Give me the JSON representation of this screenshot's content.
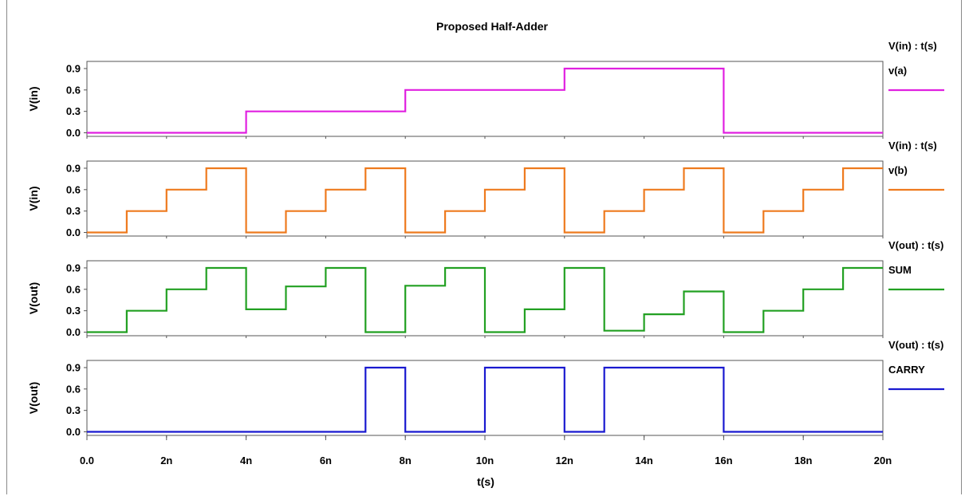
{
  "chart_data": {
    "type": "line",
    "title": "Proposed Half-Adder",
    "xlabel": "t(s)",
    "x_tick_labels": [
      "0.0",
      "2n",
      "4n",
      "6n",
      "8n",
      "10n",
      "12n",
      "14n",
      "16n",
      "18n",
      "20n"
    ],
    "xlim": [
      0,
      20
    ],
    "x_unit": "ns",
    "panels": [
      {
        "ylabel": "V(in)",
        "header": "V(in) : t(s)",
        "series_name": "v(a)",
        "color": "#e020e0",
        "ylim": [
          -0.05,
          1.0
        ],
        "y_ticks": [
          "0.0",
          "0.3",
          "0.6",
          "0.9"
        ],
        "x": [
          0,
          4,
          4,
          8,
          8,
          12,
          12,
          16,
          16,
          20
        ],
        "y": [
          0,
          0,
          0.3,
          0.3,
          0.6,
          0.6,
          0.9,
          0.9,
          0,
          0
        ]
      },
      {
        "ylabel": "V(in)",
        "header": "V(in) : t(s)",
        "series_name": "v(b)",
        "color": "#ee7a1e",
        "ylim": [
          -0.05,
          1.0
        ],
        "y_ticks": [
          "0.0",
          "0.3",
          "0.6",
          "0.9"
        ],
        "x": [
          0,
          1,
          1,
          2,
          2,
          3,
          3,
          4,
          4,
          5,
          5,
          6,
          6,
          7,
          7,
          8,
          8,
          9,
          9,
          10,
          10,
          11,
          11,
          12,
          12,
          13,
          13,
          14,
          14,
          15,
          15,
          16,
          16,
          17,
          17,
          18,
          18,
          19,
          19,
          20
        ],
        "y": [
          0,
          0,
          0.3,
          0.3,
          0.6,
          0.6,
          0.9,
          0.9,
          0,
          0,
          0.3,
          0.3,
          0.6,
          0.6,
          0.9,
          0.9,
          0,
          0,
          0.3,
          0.3,
          0.6,
          0.6,
          0.9,
          0.9,
          0,
          0,
          0.3,
          0.3,
          0.6,
          0.6,
          0.9,
          0.9,
          0,
          0,
          0.3,
          0.3,
          0.6,
          0.6,
          0.9,
          0.9
        ]
      },
      {
        "ylabel": "V(out)",
        "header": "V(out) : t(s)",
        "series_name": "SUM",
        "color": "#22a022",
        "ylim": [
          -0.05,
          1.0
        ],
        "y_ticks": [
          "0.0",
          "0.3",
          "0.6",
          "0.9"
        ],
        "x": [
          0,
          1,
          1,
          2,
          2,
          3,
          3,
          4,
          4,
          5,
          5,
          6,
          6,
          7,
          7,
          8,
          8,
          9,
          9,
          10,
          10,
          11,
          11,
          12,
          12,
          13,
          13,
          14,
          14,
          15,
          15,
          16,
          16,
          17,
          17,
          18,
          18,
          19,
          19,
          20
        ],
        "y": [
          0,
          0,
          0.3,
          0.3,
          0.6,
          0.6,
          0.9,
          0.9,
          0.32,
          0.32,
          0.64,
          0.64,
          0.9,
          0.9,
          0,
          0,
          0.65,
          0.65,
          0.9,
          0.9,
          0,
          0,
          0.32,
          0.32,
          0.9,
          0.9,
          0.02,
          0.02,
          0.25,
          0.25,
          0.57,
          0.57,
          0,
          0,
          0.3,
          0.3,
          0.6,
          0.6,
          0.9,
          0.9
        ]
      },
      {
        "ylabel": "V(out)",
        "header": "V(out) : t(s)",
        "series_name": "CARRY",
        "color": "#1a1ad0",
        "ylim": [
          -0.05,
          1.0
        ],
        "y_ticks": [
          "0.0",
          "0.3",
          "0.6",
          "0.9"
        ],
        "x": [
          0,
          7,
          7,
          8,
          8,
          10,
          10,
          12,
          12,
          13,
          13,
          16,
          16,
          20
        ],
        "y": [
          0,
          0,
          0.9,
          0.9,
          0,
          0,
          0.9,
          0.9,
          0,
          0,
          0.9,
          0.9,
          0,
          0
        ]
      }
    ]
  }
}
